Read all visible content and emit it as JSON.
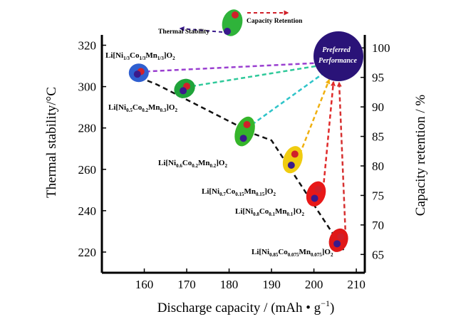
{
  "chart_data": {
    "type": "scatter",
    "xlabel": "Discharge capacity / (mAh • g",
    "xlabel_sup": "−1",
    "xlabel_end": ")",
    "ylabel_left": "Thermal stability/°C",
    "ylabel_right": "Capacity retention / %",
    "xlim": [
      150,
      212
    ],
    "ylim_left": [
      210,
      325
    ],
    "ylim_right": [
      61.9,
      102.2
    ],
    "x_ticks": [
      160,
      170,
      180,
      190,
      200,
      210
    ],
    "y_left_ticks": [
      220,
      240,
      260,
      280,
      300,
      320
    ],
    "y_right_ticks": [
      65,
      70,
      75,
      80,
      85,
      90,
      95,
      100
    ],
    "legend": {
      "thermal_stability": "Thermal Stability",
      "capacity_retention": "Capacity Retention",
      "thermal_color": "#3a1a8c",
      "retention_color": "#d0202a"
    },
    "preferred_performance": {
      "line1": "Preferred",
      "line2": "Performance",
      "color": "#2a1378"
    },
    "materials": [
      {
        "label_parts": [
          [
            "Li[Ni",
            false
          ],
          [
            "1/3",
            true
          ],
          [
            "Co",
            false
          ],
          [
            "1/3",
            true
          ],
          [
            "Mn",
            false
          ],
          [
            "1/3",
            true
          ],
          [
            "]O",
            false
          ],
          [
            "2",
            true
          ]
        ],
        "discharge_capacity": 158.7,
        "thermal_stability": 306,
        "capacity_retention": 96,
        "ellipse_color": "#2f5fd0",
        "arrow_color": "#9a3fd0"
      },
      {
        "label_parts": [
          [
            "Li[Ni",
            false
          ],
          [
            "0.5",
            true
          ],
          [
            "Co",
            false
          ],
          [
            "0.2",
            true
          ],
          [
            "Mn",
            false
          ],
          [
            "0.3",
            true
          ],
          [
            "]O",
            false
          ],
          [
            "2",
            true
          ]
        ],
        "discharge_capacity": 169.5,
        "thermal_stability": 298,
        "capacity_retention": 93.5,
        "ellipse_color": "#1fa33a",
        "arrow_color": "#2fc99a"
      },
      {
        "label_parts": [
          [
            "Li[Ni",
            false
          ],
          [
            "0.6",
            true
          ],
          [
            "Co",
            false
          ],
          [
            "0.2",
            true
          ],
          [
            "Mn",
            false
          ],
          [
            "0.2",
            true
          ],
          [
            "]O",
            false
          ],
          [
            "2",
            true
          ]
        ],
        "discharge_capacity": 183.7,
        "thermal_stability": 275,
        "capacity_retention": 87,
        "ellipse_color": "#35b52a",
        "arrow_color": "#2fc4c9"
      },
      {
        "label_parts": [
          [
            "Li[Ni",
            false
          ],
          [
            "0.7",
            true
          ],
          [
            "Co",
            false
          ],
          [
            "0.15",
            true
          ],
          [
            "Mn",
            false
          ],
          [
            "0.15",
            true
          ],
          [
            "]O",
            false
          ],
          [
            "2",
            true
          ]
        ],
        "discharge_capacity": 195,
        "thermal_stability": 262,
        "capacity_retention": 82,
        "ellipse_color": "#f0cc10",
        "arrow_color": "#f0b010"
      },
      {
        "label_parts": [
          [
            "Li[Ni",
            false
          ],
          [
            "0.8",
            true
          ],
          [
            "Co",
            false
          ],
          [
            "0.1",
            true
          ],
          [
            "Mn",
            false
          ],
          [
            "0.1",
            true
          ],
          [
            "]O",
            false
          ],
          [
            "2",
            true
          ]
        ],
        "discharge_capacity": 200.5,
        "thermal_stability": 246,
        "capacity_retention": 76,
        "ellipse_color": "#e81818",
        "arrow_color": "#e02a2a"
      },
      {
        "label_parts": [
          [
            "Li[Ni",
            false
          ],
          [
            "0.85",
            true
          ],
          [
            "Co",
            false
          ],
          [
            "0.075",
            true
          ],
          [
            "Mn",
            false
          ],
          [
            "0.075",
            true
          ],
          [
            "]O",
            false
          ],
          [
            "2",
            true
          ]
        ],
        "discharge_capacity": 205.8,
        "thermal_stability": 224,
        "capacity_retention": 68,
        "ellipse_color": "#e01818",
        "arrow_color": "#d63030"
      }
    ],
    "trend_line": {
      "color": "#111111",
      "x": [
        157,
        163,
        186,
        190,
        207
      ],
      "y": [
        306,
        301,
        277,
        274,
        221
      ]
    }
  }
}
